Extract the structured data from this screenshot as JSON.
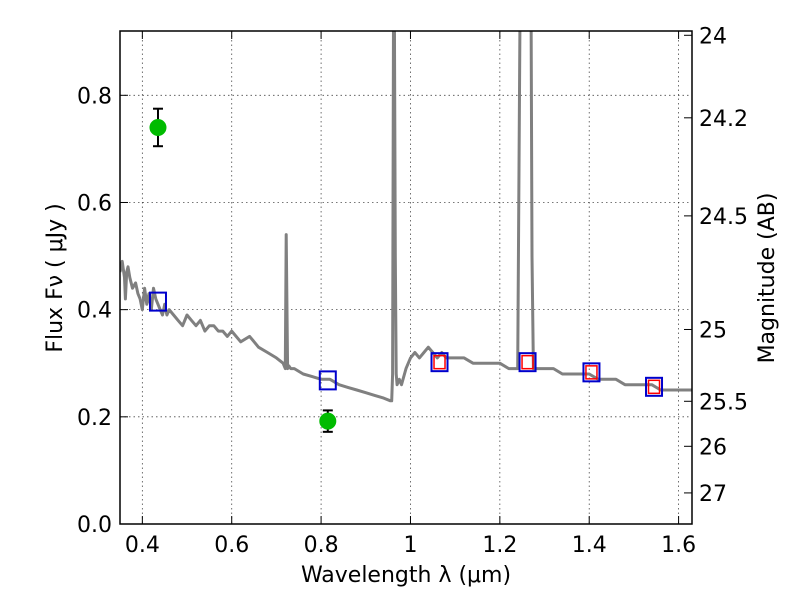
{
  "chart_data": {
    "type": "scatter",
    "title": "",
    "xlabel": "Wavelength  λ (μm)",
    "ylabel": "Flux  Fν  ( μJy )",
    "ylabel_right": "Magnitude (AB)",
    "xlim": [
      0.35,
      1.63
    ],
    "ylim": [
      0.0,
      0.92
    ],
    "grid": true,
    "x_ticks": [
      0.4,
      0.6,
      0.8,
      1.0,
      1.2,
      1.4,
      1.6
    ],
    "x_tick_labels": [
      "0.4",
      "0.6",
      "0.8",
      "1",
      "1.2",
      "1.4",
      "1.6"
    ],
    "y_ticks": [
      0.0,
      0.2,
      0.4,
      0.6,
      0.8
    ],
    "y_tick_labels": [
      "0.0",
      "0.2",
      "0.4",
      "0.6",
      "0.8"
    ],
    "right_ticks": [
      {
        "label": "24",
        "flux": 0.912
      },
      {
        "label": "24.2",
        "flux": 0.758
      },
      {
        "label": "24.5",
        "flux": 0.575
      },
      {
        "label": "25",
        "flux": 0.363
      },
      {
        "label": "25.5",
        "flux": 0.229
      },
      {
        "label": "26",
        "flux": 0.145
      },
      {
        "label": "27",
        "flux": 0.058
      }
    ],
    "series": [
      {
        "kind": "line",
        "color": "#808080",
        "x": [
          0.35,
          0.355,
          0.36,
          0.362,
          0.365,
          0.368,
          0.372,
          0.378,
          0.385,
          0.39,
          0.395,
          0.4,
          0.405,
          0.41,
          0.415,
          0.42,
          0.425,
          0.43,
          0.435,
          0.44,
          0.445,
          0.45,
          0.455,
          0.46,
          0.47,
          0.48,
          0.49,
          0.5,
          0.51,
          0.52,
          0.53,
          0.54,
          0.55,
          0.56,
          0.57,
          0.58,
          0.59,
          0.6,
          0.62,
          0.64,
          0.65,
          0.66,
          0.68,
          0.7,
          0.715,
          0.72,
          0.722,
          0.725,
          0.728,
          0.732,
          0.74,
          0.76,
          0.78,
          0.8,
          0.82,
          0.84,
          0.86,
          0.88,
          0.9,
          0.92,
          0.94,
          0.955,
          0.958,
          0.96,
          0.962,
          0.964,
          0.966,
          0.968,
          0.97,
          0.975,
          0.98,
          0.99,
          1.0,
          1.01,
          1.02,
          1.03,
          1.04,
          1.05,
          1.06,
          1.07,
          1.08,
          1.1,
          1.12,
          1.14,
          1.16,
          1.18,
          1.2,
          1.22,
          1.24,
          1.245,
          1.25,
          1.252,
          1.255,
          1.26,
          1.265,
          1.268,
          1.27,
          1.272,
          1.275,
          1.28,
          1.3,
          1.32,
          1.34,
          1.36,
          1.38,
          1.4,
          1.42,
          1.44,
          1.46,
          1.48,
          1.5,
          1.52,
          1.54,
          1.56,
          1.58,
          1.6,
          1.63
        ],
        "y": [
          0.47,
          0.49,
          0.46,
          0.42,
          0.47,
          0.48,
          0.46,
          0.44,
          0.45,
          0.43,
          0.42,
          0.4,
          0.44,
          0.41,
          0.43,
          0.4,
          0.44,
          0.42,
          0.41,
          0.4,
          0.39,
          0.41,
          0.39,
          0.4,
          0.39,
          0.38,
          0.37,
          0.39,
          0.38,
          0.37,
          0.38,
          0.36,
          0.37,
          0.37,
          0.36,
          0.36,
          0.35,
          0.36,
          0.34,
          0.35,
          0.34,
          0.33,
          0.32,
          0.31,
          0.3,
          0.29,
          0.54,
          0.29,
          0.295,
          0.29,
          0.29,
          0.28,
          0.275,
          0.27,
          0.27,
          0.26,
          0.255,
          0.25,
          0.245,
          0.24,
          0.235,
          0.23,
          0.23,
          0.28,
          0.95,
          0.95,
          0.5,
          0.28,
          0.26,
          0.27,
          0.26,
          0.29,
          0.31,
          0.32,
          0.31,
          0.32,
          0.33,
          0.32,
          0.31,
          0.32,
          0.31,
          0.31,
          0.31,
          0.3,
          0.3,
          0.3,
          0.3,
          0.29,
          0.29,
          0.95,
          0.95,
          0.95,
          0.95,
          0.95,
          0.95,
          0.95,
          0.95,
          0.5,
          0.29,
          0.29,
          0.29,
          0.29,
          0.28,
          0.28,
          0.28,
          0.28,
          0.27,
          0.27,
          0.27,
          0.26,
          0.26,
          0.26,
          0.26,
          0.25,
          0.25,
          0.25,
          0.25
        ]
      },
      {
        "kind": "blue-square",
        "color": "#0000cc",
        "x": [
          0.435,
          0.815,
          1.065,
          1.262,
          1.405,
          1.545
        ],
        "y": [
          0.415,
          0.268,
          0.302,
          0.302,
          0.283,
          0.256
        ]
      },
      {
        "kind": "red-square",
        "color": "#ff0000",
        "x": [
          1.065,
          1.262,
          1.405,
          1.545
        ],
        "y": [
          0.302,
          0.302,
          0.283,
          0.256
        ]
      },
      {
        "kind": "green-point",
        "color": "#00bb00",
        "x": [
          0.435,
          0.815
        ],
        "y": [
          0.74,
          0.192
        ],
        "yerr": [
          0.035,
          0.02
        ]
      }
    ]
  }
}
